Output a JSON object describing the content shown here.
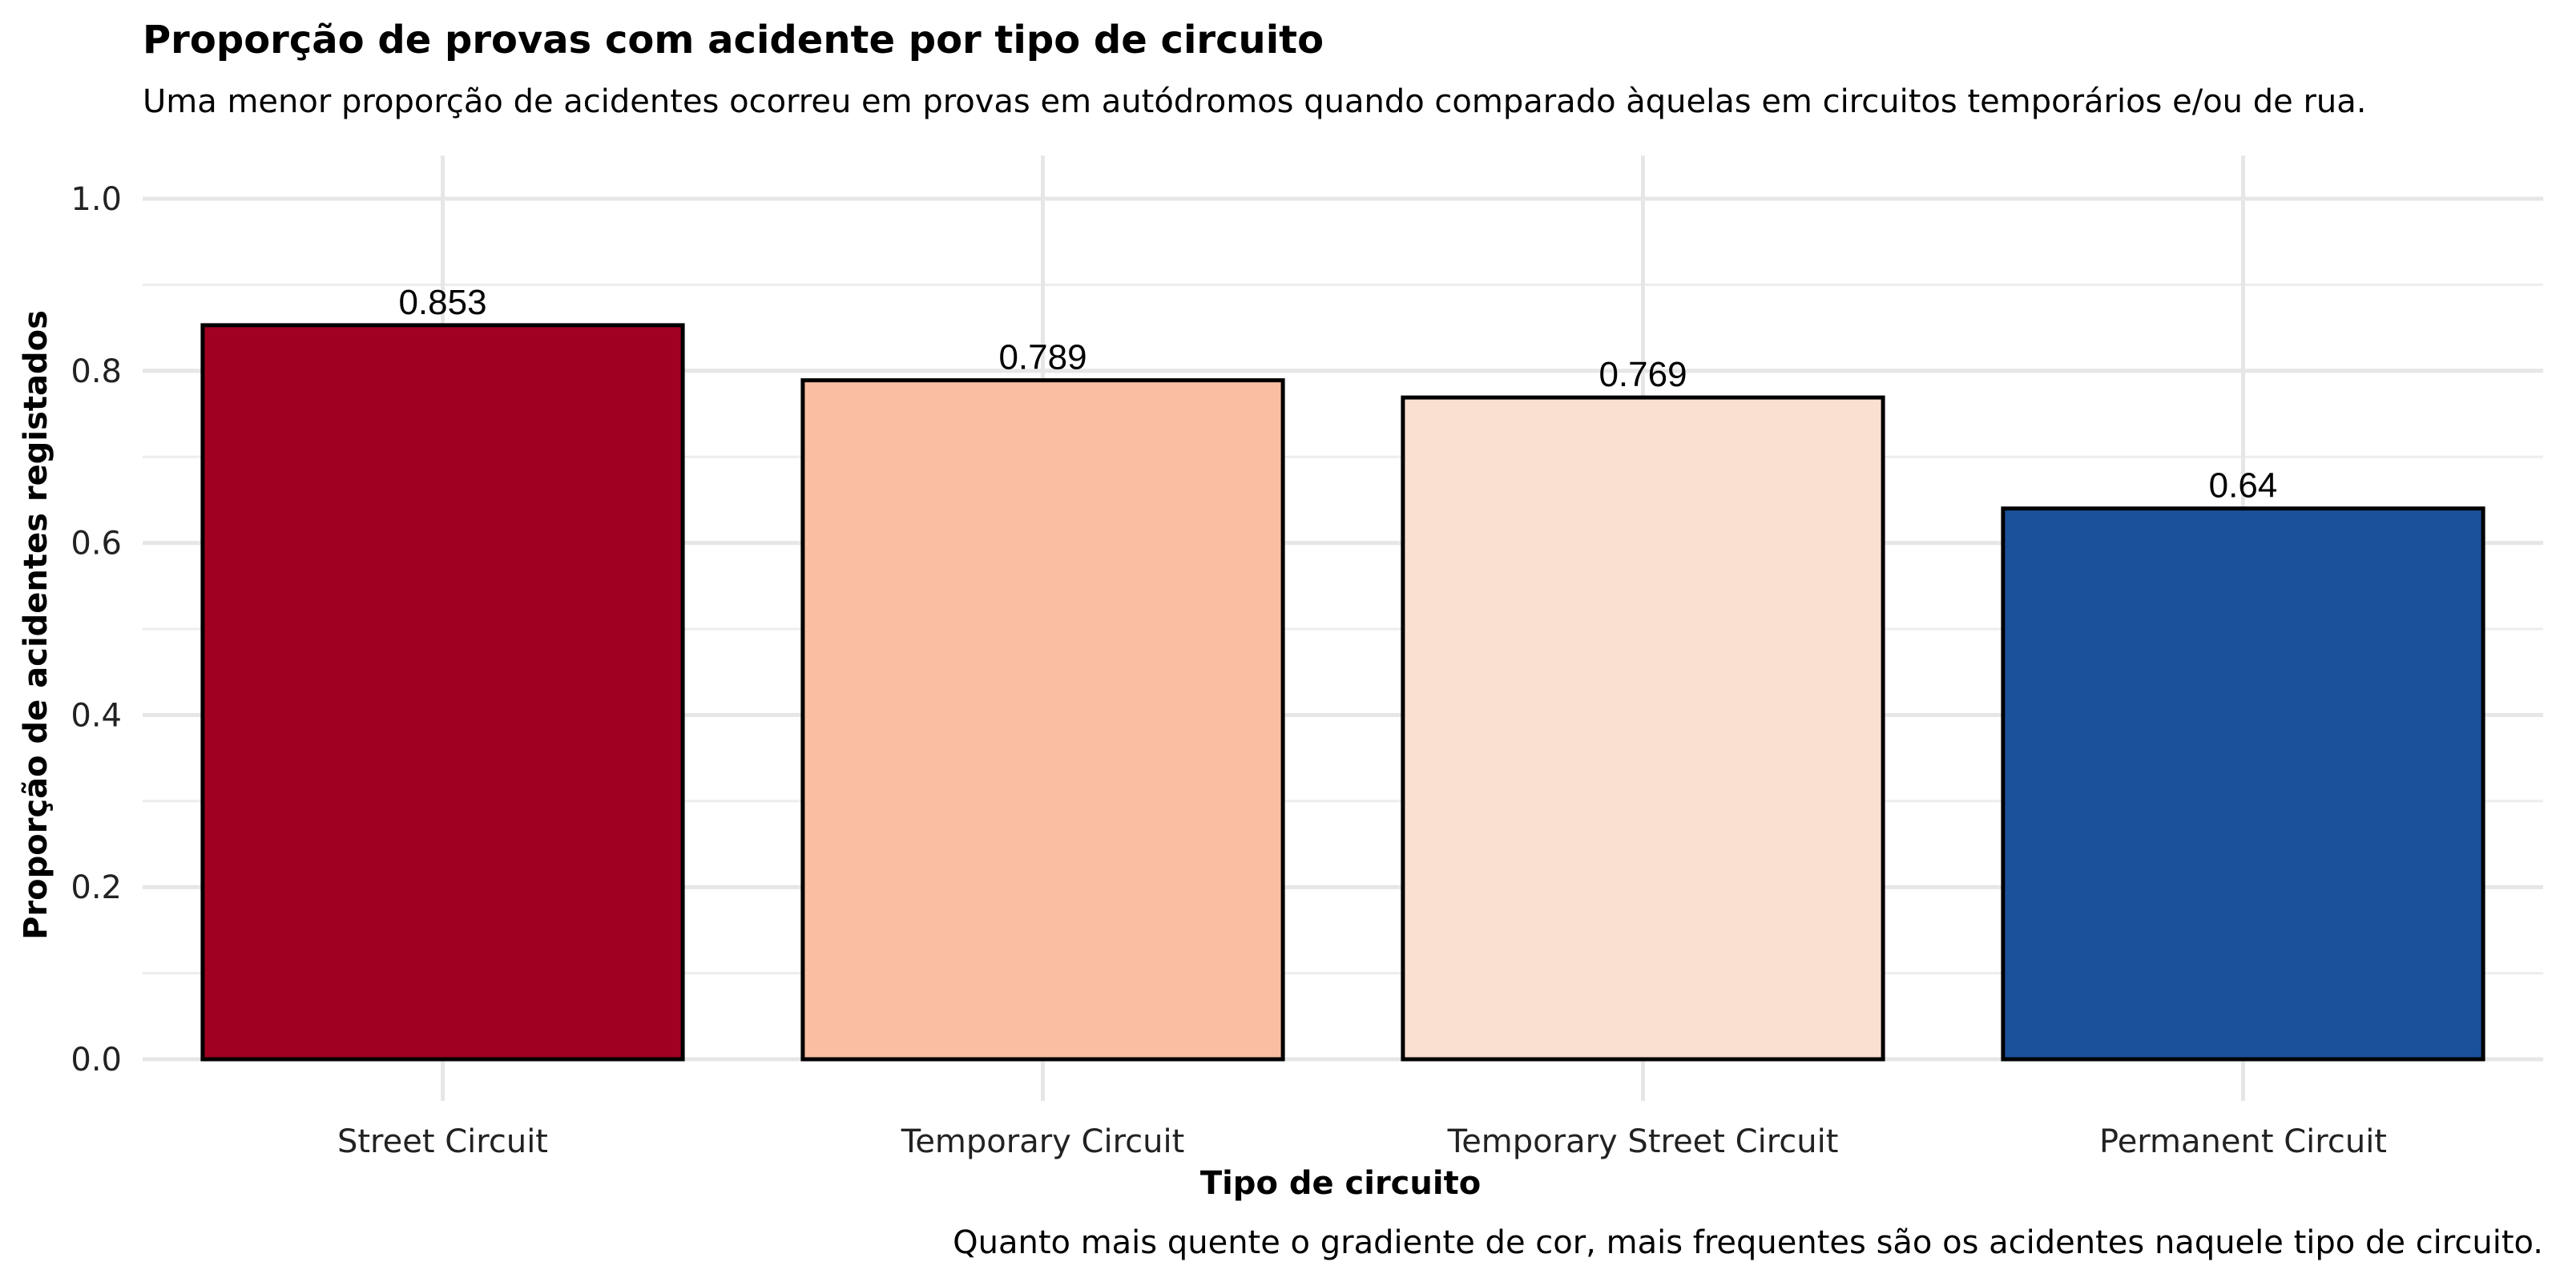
{
  "chart_data": {
    "type": "bar",
    "title": "Proporção de provas com acidente por tipo de circuito",
    "subtitle": "Uma menor proporção de acidentes ocorreu em provas em autódromos quando comparado àquelas em circuitos temporários e/ou de rua.",
    "caption": "Quanto mais quente o gradiente de cor, mais frequentes são os acidentes naquele tipo de circuito.",
    "xlabel": "Tipo de circuito",
    "ylabel": "Proporção de acidentes registados",
    "categories": [
      "Street Circuit",
      "Temporary Circuit",
      "Temporary Street Circuit",
      "Permanent Circuit"
    ],
    "values": [
      0.853,
      0.789,
      0.769,
      0.64
    ],
    "value_labels": [
      "0.853",
      "0.789",
      "0.769",
      "0.64"
    ],
    "colors": [
      "#a00021",
      "#f8bfa3",
      "#fae0d1",
      "#1b519b"
    ],
    "ylim": [
      0,
      1.05
    ],
    "yticks": [
      0.0,
      0.2,
      0.4,
      0.6,
      0.8,
      1.0
    ],
    "ytick_labels": [
      "0.0",
      "0.2",
      "0.4",
      "0.6",
      "0.8",
      "1.0"
    ],
    "grid": true,
    "legend": "none"
  }
}
